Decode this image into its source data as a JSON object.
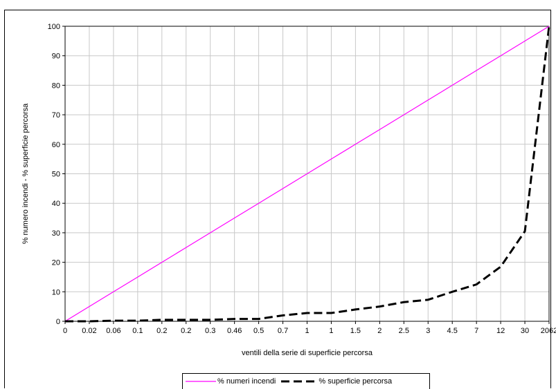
{
  "chart_data": {
    "type": "line",
    "title": "",
    "xlabel": "ventili della serie di superficie percorsa",
    "ylabel": "% numero incendi - % superficie percorsa",
    "categories": [
      "0",
      "0.02",
      "0.06",
      "0.1",
      "0.2",
      "0.2",
      "0.3",
      "0.46",
      "0.5",
      "0.7",
      "1",
      "1",
      "1.5",
      "2",
      "2.5",
      "3",
      "4.5",
      "7",
      "12",
      "30",
      "2062"
    ],
    "ylim": [
      0,
      100
    ],
    "yticks": [
      0,
      10,
      20,
      30,
      40,
      50,
      60,
      70,
      80,
      90,
      100
    ],
    "grid": true,
    "legend_position": "bottom",
    "series": [
      {
        "name": "% numeri incendi",
        "color": "#ff00ff",
        "style": "solid",
        "values": [
          0,
          5,
          10,
          15,
          20,
          25,
          30,
          35,
          40,
          45,
          50,
          55,
          60,
          65,
          70,
          75,
          80,
          85,
          90,
          95,
          100
        ]
      },
      {
        "name": "% superficie percorsa",
        "color": "#000000",
        "style": "dashed",
        "values": [
          0,
          0,
          0.2,
          0.2,
          0.5,
          0.5,
          0.5,
          0.8,
          0.8,
          2,
          2.8,
          2.8,
          4,
          5,
          6.5,
          7.3,
          10,
          12.5,
          18.5,
          30.5,
          100
        ]
      }
    ]
  }
}
